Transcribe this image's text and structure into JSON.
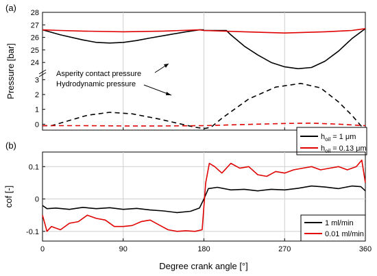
{
  "chart_data": [
    {
      "type": "line",
      "panel_label": "(a)",
      "ylabel": "Pressure [bar]",
      "xlim": [
        0,
        360
      ],
      "x_ticks": [
        0,
        90,
        180,
        270,
        360
      ],
      "y_broken_axis": true,
      "y_ticks_upper": [
        24,
        25,
        26,
        27,
        28
      ],
      "y_ticks_lower": [
        0,
        1,
        2,
        3
      ],
      "ylim_upper": [
        23.3,
        28
      ],
      "ylim_lower": [
        -0.4,
        3.2
      ],
      "annotations": [
        "Asperity contact pressure",
        "Hydrodynamic pressure"
      ],
      "legend": {
        "placement": "right",
        "entries": [
          {
            "base": "h",
            "sub": "oil",
            "tail": " = 1 μm",
            "color": "#000000"
          },
          {
            "base": "h",
            "sub": "oil",
            "tail": " = 0.13 μm",
            "color": "#e00000"
          }
        ]
      },
      "series": [
        {
          "color": "#000000",
          "style": "solid",
          "kind": "hydrodynamic",
          "x": [
            0,
            5,
            20,
            45,
            60,
            75,
            90,
            105,
            120,
            140,
            160,
            175,
            180
          ],
          "y": [
            26.6,
            26.5,
            26.2,
            25.8,
            25.6,
            25.55,
            25.6,
            25.75,
            25.95,
            26.2,
            26.45,
            26.6,
            26.6
          ]
        },
        {
          "color": "#000000",
          "style": "solid",
          "kind": "hydrodynamic",
          "x": [
            180,
            205,
            210,
            225,
            240,
            255,
            270,
            285,
            300,
            315,
            330,
            345,
            360
          ],
          "y": [
            26.55,
            26.55,
            26.2,
            25.3,
            24.6,
            24.0,
            23.65,
            23.5,
            23.6,
            24.1,
            24.9,
            25.9,
            26.7
          ]
        },
        {
          "color": "#e00000",
          "style": "solid",
          "kind": "hydrodynamic",
          "x": [
            0,
            20,
            45,
            90,
            135,
            175,
            180,
            225,
            270,
            315,
            345,
            360
          ],
          "y": [
            26.6,
            26.55,
            26.5,
            26.45,
            26.5,
            26.6,
            26.55,
            26.45,
            26.35,
            26.45,
            26.55,
            26.7
          ]
        },
        {
          "color": "#000000",
          "style": "dashed",
          "kind": "asperity",
          "x": [
            0,
            10,
            30,
            50,
            75,
            100,
            130,
            155,
            170,
            180
          ],
          "y": [
            -0.1,
            -0.1,
            0.25,
            0.6,
            0.8,
            0.7,
            0.35,
            0.0,
            -0.2,
            -0.3
          ]
        },
        {
          "color": "#000000",
          "style": "dashed",
          "kind": "asperity",
          "x": [
            180,
            188,
            200,
            230,
            260,
            288,
            310,
            330,
            345,
            355,
            360
          ],
          "y": [
            -0.3,
            -0.2,
            0.4,
            1.7,
            2.5,
            2.75,
            2.45,
            1.5,
            0.6,
            -0.1,
            -0.3
          ]
        },
        {
          "color": "#e00000",
          "style": "dashed",
          "kind": "asperity",
          "x": [
            0,
            45,
            90,
            135,
            180,
            225,
            270,
            300,
            330,
            360
          ],
          "y": [
            -0.1,
            -0.1,
            -0.12,
            -0.12,
            -0.1,
            -0.02,
            0.05,
            0.07,
            0.0,
            -0.1
          ]
        }
      ]
    },
    {
      "type": "line",
      "panel_label": "(b)",
      "ylabel": "cof [-]",
      "xlabel": "Degree crank angle [°]",
      "xlim": [
        0,
        360
      ],
      "ylim": [
        -0.13,
        0.145
      ],
      "x_ticks": [
        0,
        90,
        180,
        270,
        360
      ],
      "y_ticks": [
        -0.1,
        0.0,
        0.1
      ],
      "y_tick_labels": [
        "-0.1",
        "0",
        "0.1"
      ],
      "legend": {
        "placement": "bottom-right",
        "entries": [
          {
            "text": "1 ml/min",
            "color": "#000000"
          },
          {
            "text": "0.01 ml/min",
            "color": "#e00000"
          }
        ]
      },
      "series": [
        {
          "color": "#000000",
          "x": [
            0,
            5,
            15,
            30,
            45,
            60,
            75,
            90,
            105,
            120,
            135,
            150,
            165,
            175,
            180,
            185,
            195,
            210,
            225,
            240,
            255,
            270,
            285,
            300,
            315,
            330,
            345,
            355,
            360
          ],
          "y": [
            -0.02,
            -0.03,
            -0.028,
            -0.032,
            -0.026,
            -0.03,
            -0.027,
            -0.032,
            -0.029,
            -0.034,
            -0.037,
            -0.042,
            -0.038,
            -0.028,
            0.0,
            0.032,
            0.036,
            0.028,
            0.03,
            0.025,
            0.03,
            0.028,
            0.033,
            0.04,
            0.037,
            0.032,
            0.04,
            0.038,
            0.025
          ]
        },
        {
          "color": "#e00000",
          "x": [
            0,
            5,
            10,
            20,
            30,
            40,
            50,
            60,
            70,
            80,
            90,
            100,
            110,
            120,
            130,
            140,
            150,
            160,
            170,
            178,
            182,
            186,
            192,
            200,
            210,
            220,
            230,
            240,
            250,
            260,
            270,
            280,
            290,
            300,
            310,
            320,
            330,
            340,
            350,
            356,
            360
          ],
          "y": [
            -0.05,
            -0.1,
            -0.085,
            -0.095,
            -0.075,
            -0.07,
            -0.05,
            -0.06,
            -0.065,
            -0.085,
            -0.085,
            -0.082,
            -0.07,
            -0.065,
            -0.08,
            -0.095,
            -0.1,
            -0.098,
            -0.1,
            -0.095,
            0.05,
            0.11,
            0.1,
            0.08,
            0.11,
            0.095,
            0.1,
            0.075,
            0.07,
            0.085,
            0.08,
            0.09,
            0.095,
            0.1,
            0.09,
            0.095,
            0.1,
            0.09,
            0.1,
            0.12,
            0.05
          ]
        }
      ]
    }
  ]
}
